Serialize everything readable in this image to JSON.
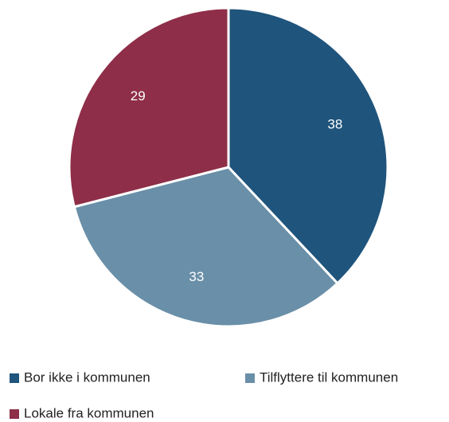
{
  "chart_data": {
    "type": "pie",
    "categories": [
      "Bor ikke i kommunen",
      "Tilflyttere til kommunen",
      "Lokale fra kommunen"
    ],
    "values": [
      38,
      33,
      29
    ],
    "colors": [
      "#1f547c",
      "#6a8fa8",
      "#8e2e48"
    ],
    "legend": "bottom"
  }
}
